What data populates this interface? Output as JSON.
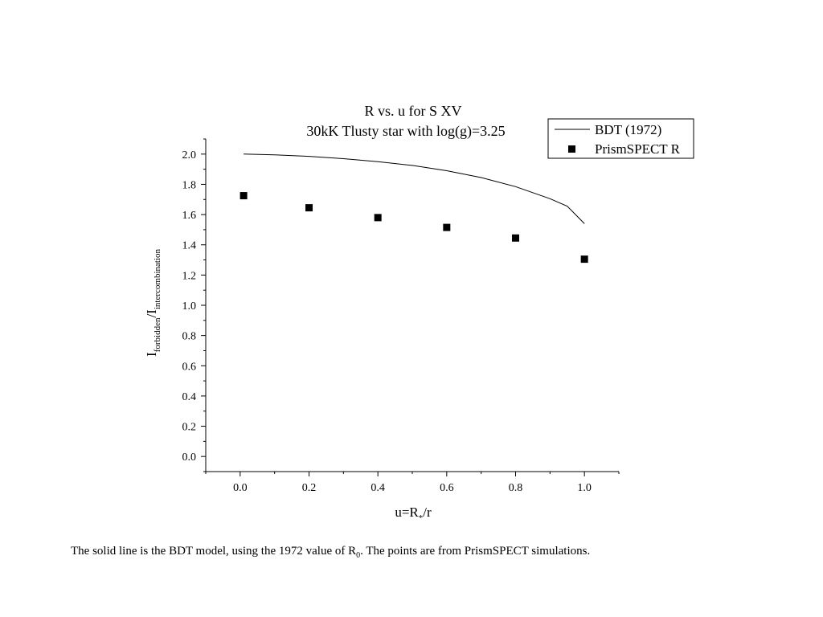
{
  "chart_data": {
    "type": "scatter",
    "title": "R vs. u for S XV",
    "subtitle": "30kK Tlusty star with log(g)=3.25",
    "xlabel": {
      "main": "u=R",
      "sub": "*",
      "tail": "/r"
    },
    "ylabel": {
      "a": "I",
      "a_sub": "forbidden",
      "b": "/I",
      "b_sub": "intercombination"
    },
    "xlim": [
      -0.1,
      1.1
    ],
    "ylim": [
      -0.1,
      2.1
    ],
    "x_ticks": [
      0.0,
      0.2,
      0.4,
      0.6,
      0.8,
      1.0
    ],
    "x_tick_labels": [
      "0.0",
      "0.2",
      "0.4",
      "0.6",
      "0.8",
      "1.0"
    ],
    "y_ticks": [
      0.0,
      0.2,
      0.4,
      0.6,
      0.8,
      1.0,
      1.2,
      1.4,
      1.6,
      1.8,
      2.0
    ],
    "y_tick_labels": [
      "0.0",
      "0.2",
      "0.4",
      "0.6",
      "0.8",
      "1.0",
      "1.2",
      "1.4",
      "1.6",
      "1.8",
      "2.0"
    ],
    "grid": false,
    "legend_position": "top-right",
    "series": [
      {
        "name": "BDT (1972)",
        "kind": "line",
        "color": "#000000",
        "x": [
          0.01,
          0.1,
          0.2,
          0.3,
          0.4,
          0.5,
          0.6,
          0.7,
          0.8,
          0.9,
          0.95,
          1.0
        ],
        "y": [
          2.0,
          1.995,
          1.985,
          1.97,
          1.95,
          1.925,
          1.89,
          1.845,
          1.785,
          1.705,
          1.655,
          1.54
        ]
      },
      {
        "name": "PrismSPECT R",
        "kind": "scatter",
        "marker": "square",
        "color": "#000000",
        "x": [
          0.01,
          0.2,
          0.4,
          0.6,
          0.8,
          1.0
        ],
        "y": [
          1.725,
          1.645,
          1.58,
          1.515,
          1.445,
          1.305
        ]
      }
    ]
  },
  "caption": {
    "before": "The solid line is the BDT model, using the 1972 value of R",
    "sub": "0",
    "after": ".  The points are from PrismSPECT simulations."
  }
}
